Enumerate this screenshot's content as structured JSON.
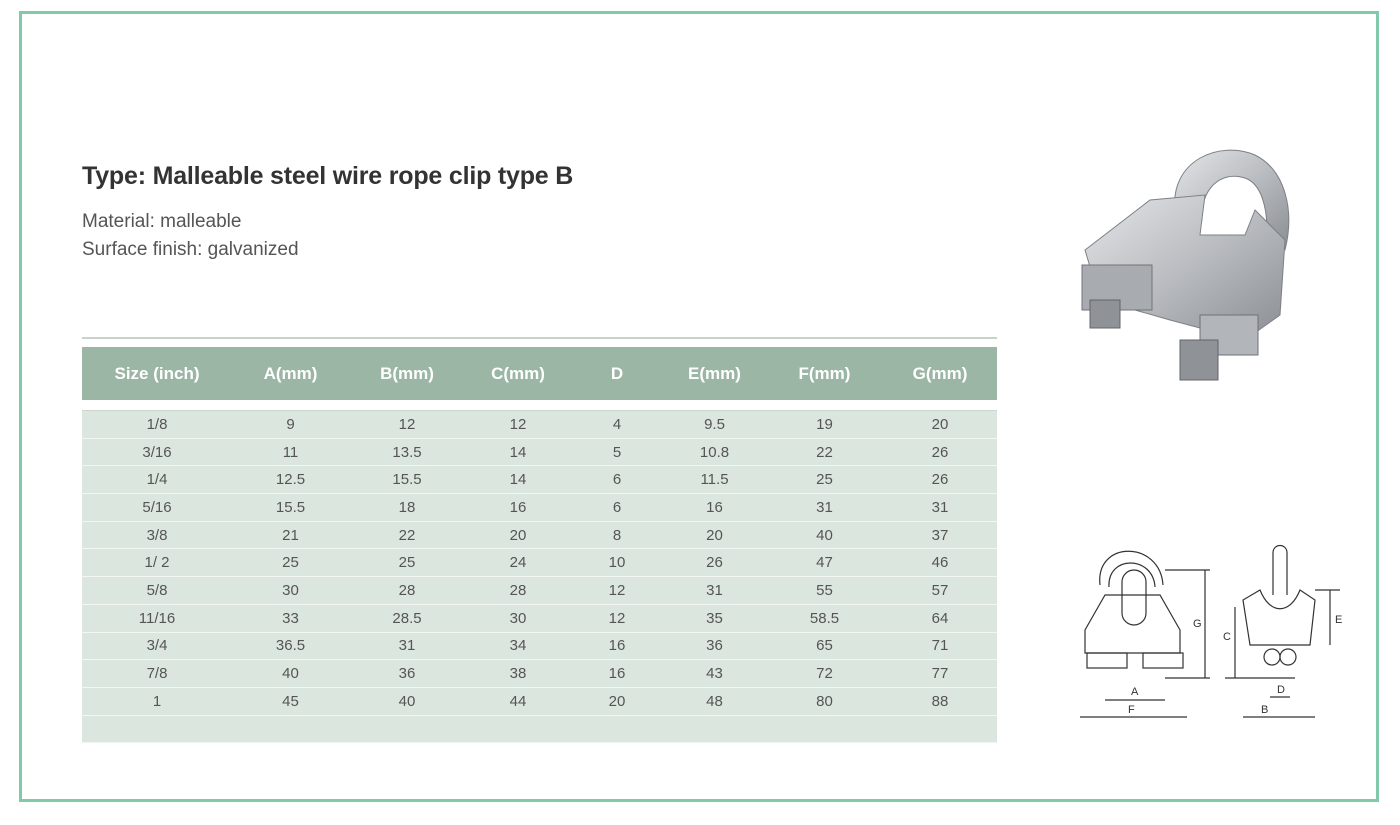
{
  "title": "Type: Malleable steel wire rope clip type B",
  "specs": [
    "Material: malleable",
    "Surface finish: galvanized"
  ],
  "table": {
    "headers": [
      "Size (inch)",
      "A(mm)",
      "B(mm)",
      "C(mm)",
      "D",
      "E(mm)",
      "F(mm)",
      "G(mm)"
    ],
    "rows": [
      [
        "1/8",
        "9",
        "12",
        "12",
        "4",
        "9.5",
        "19",
        "20"
      ],
      [
        "3/16",
        "11",
        "13.5",
        "14",
        "5",
        "10.8",
        "22",
        "26"
      ],
      [
        "1/4",
        "12.5",
        "15.5",
        "14",
        "6",
        "11.5",
        "25",
        "26"
      ],
      [
        "5/16",
        "15.5",
        "18",
        "16",
        "6",
        "16",
        "31",
        "31"
      ],
      [
        "3/8",
        "21",
        "22",
        "20",
        "8",
        "20",
        "40",
        "37"
      ],
      [
        "1/ 2",
        "25",
        "25",
        "24",
        "10",
        "26",
        "47",
        "46"
      ],
      [
        "5/8",
        "30",
        "28",
        "28",
        "12",
        "31",
        "55",
        "57"
      ],
      [
        "11/16",
        "33",
        "28.5",
        "30",
        "12",
        "35",
        "58.5",
        "64"
      ],
      [
        "3/4",
        "36.5",
        "31",
        "34",
        "16",
        "36",
        "65",
        "71"
      ],
      [
        "7/8",
        "40",
        "36",
        "38",
        "16",
        "43",
        "72",
        "77"
      ],
      [
        "1",
        "45",
        "40",
        "44",
        "20",
        "48",
        "80",
        "88"
      ]
    ]
  },
  "diagram_labels": {
    "A": "A",
    "B": "B",
    "C": "C",
    "D": "D",
    "E": "E",
    "F": "F",
    "G": "G"
  },
  "colors": {
    "border": "#82c9a9",
    "header": "#9bb6a5",
    "row": "#dbe6de"
  }
}
